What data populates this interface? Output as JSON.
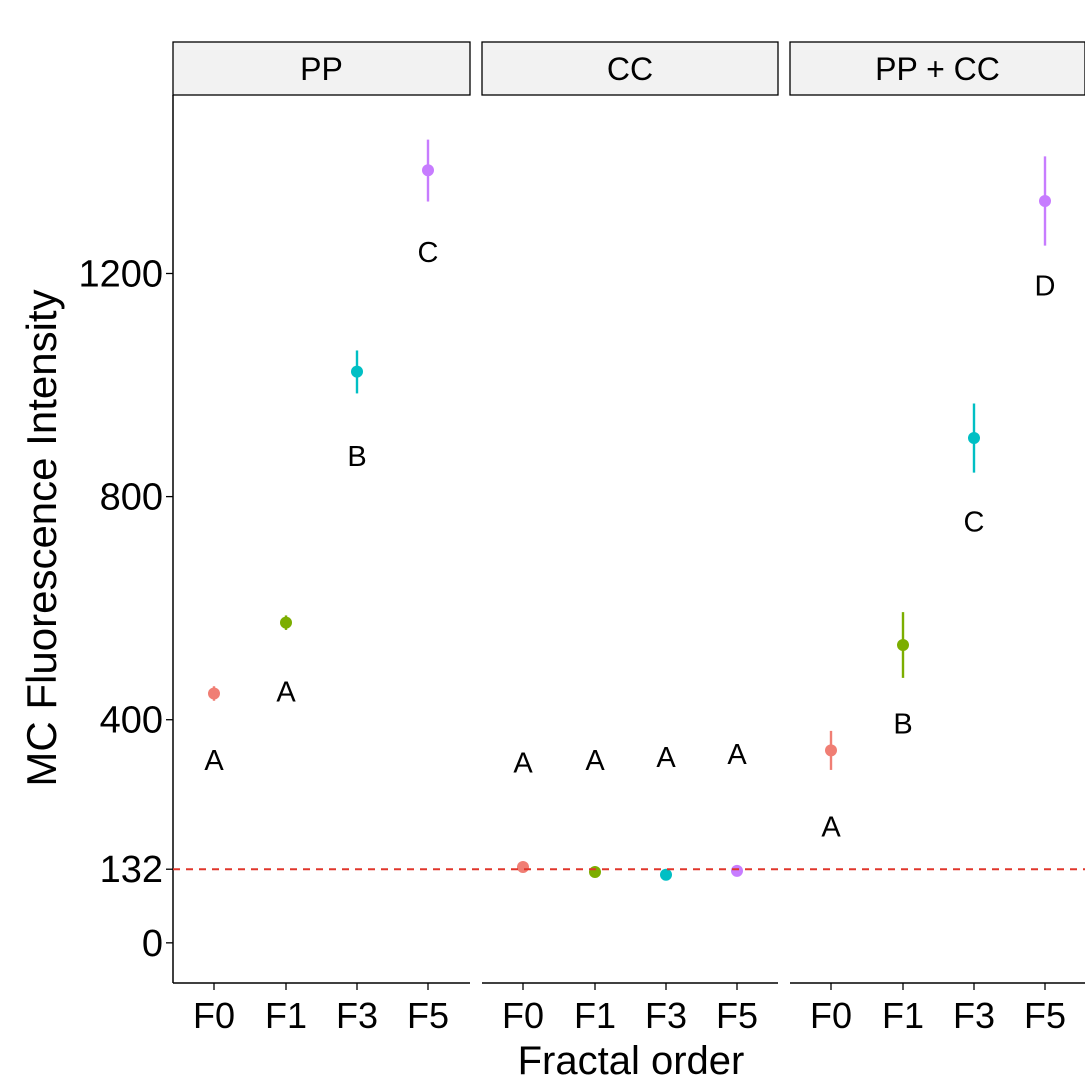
{
  "chart_data": {
    "type": "scatter",
    "xlabel": "Fractal order",
    "ylabel": "MC Fluorescence Intensity",
    "categories": [
      "F0",
      "F1",
      "F3",
      "F5"
    ],
    "y_ticks": [
      "0",
      "132",
      "400",
      "800",
      "1200"
    ],
    "y_tick_values": [
      0,
      132,
      400,
      800,
      1200
    ],
    "ylim": [
      -72,
      1520
    ],
    "reference_line": {
      "y": 132,
      "style": "dashed",
      "color": "#e0362b"
    },
    "colors": {
      "F0": "#f07e74",
      "F1": "#7cae00",
      "F3": "#00bfc4",
      "F5": "#c77cff"
    },
    "grid": false,
    "facets": [
      {
        "label": "PP",
        "points": [
          {
            "x": "F0",
            "mean": 447,
            "low": 434,
            "high": 460,
            "letter": "A",
            "letter_y": 330
          },
          {
            "x": "F1",
            "mean": 574,
            "low": 561,
            "high": 587,
            "letter": "A",
            "letter_y": 452
          },
          {
            "x": "F3",
            "mean": 1024,
            "low": 985,
            "high": 1062,
            "letter": "B",
            "letter_y": 875
          },
          {
            "x": "F5",
            "mean": 1385,
            "low": 1329,
            "high": 1440,
            "letter": "C",
            "letter_y": 1240
          }
        ]
      },
      {
        "label": "CC",
        "points": [
          {
            "x": "F0",
            "mean": 136,
            "low": 130,
            "high": 142,
            "letter": "A",
            "letter_y": 325
          },
          {
            "x": "F1",
            "mean": 127,
            "low": 121,
            "high": 133,
            "letter": "A",
            "letter_y": 330
          },
          {
            "x": "F3",
            "mean": 122,
            "low": 116,
            "high": 128,
            "letter": "A",
            "letter_y": 335
          },
          {
            "x": "F5",
            "mean": 129,
            "low": 123,
            "high": 135,
            "letter": "A",
            "letter_y": 340
          }
        ]
      },
      {
        "label": "PP + CC",
        "points": [
          {
            "x": "F0",
            "mean": 345,
            "low": 310,
            "high": 380,
            "letter": "A",
            "letter_y": 210
          },
          {
            "x": "F1",
            "mean": 534,
            "low": 475,
            "high": 593,
            "letter": "B",
            "letter_y": 395
          },
          {
            "x": "F3",
            "mean": 905,
            "low": 843,
            "high": 967,
            "letter": "C",
            "letter_y": 757
          },
          {
            "x": "F5",
            "mean": 1330,
            "low": 1250,
            "high": 1410,
            "letter": "D",
            "letter_y": 1180
          }
        ]
      }
    ]
  }
}
